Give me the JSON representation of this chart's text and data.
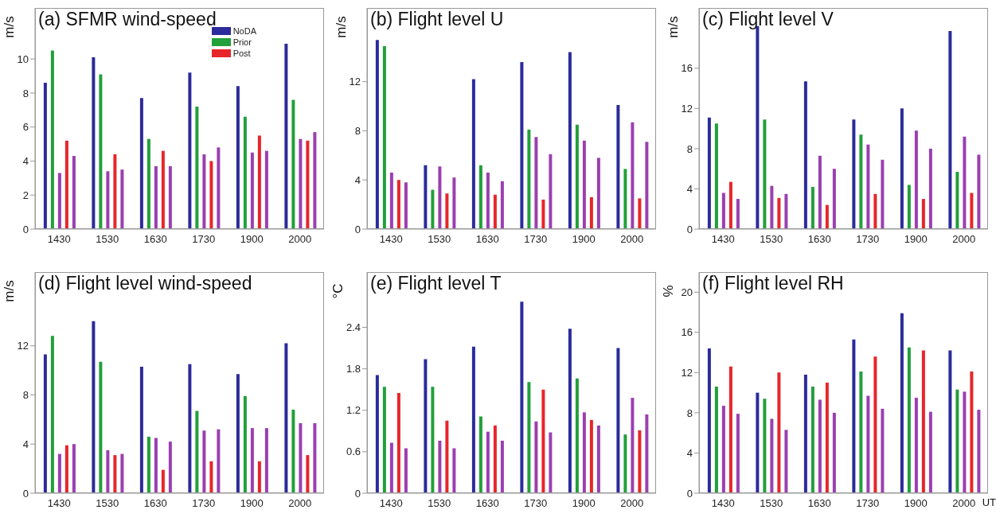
{
  "chart_data": [
    {
      "type": "bar",
      "title": "(a) SFMR wind-speed",
      "ylabel": "m/s",
      "categories": [
        "1430",
        "1530",
        "1630",
        "1730",
        "1900",
        "2000"
      ],
      "ylim": [
        0,
        13
      ],
      "yticks": [
        0,
        2,
        4,
        6,
        8,
        10
      ],
      "legend": "top right",
      "grid": false,
      "series": [
        {
          "name": "NoDA",
          "color": "#2b2b9c",
          "values": [
            8.6,
            10.1,
            7.7,
            9.2,
            8.4,
            10.9
          ]
        },
        {
          "name": "Prior",
          "color": "#22a03a",
          "values": [
            10.5,
            9.1,
            5.3,
            7.2,
            6.6,
            7.6
          ]
        },
        {
          "color": "#9b3fb0",
          "values": [
            3.3,
            3.4,
            3.7,
            4.4,
            4.5,
            5.3
          ]
        },
        {
          "name": "Post",
          "color": "#e8252a",
          "values": [
            5.2,
            4.4,
            4.6,
            4.0,
            5.5,
            5.2
          ]
        },
        {
          "color": "#9b3fb0",
          "values": [
            4.3,
            3.5,
            3.7,
            4.8,
            4.6,
            5.7
          ]
        }
      ]
    },
    {
      "type": "bar",
      "title": "(b) Flight level U",
      "ylabel": "m/s",
      "categories": [
        "1430",
        "1530",
        "1630",
        "1730",
        "1900",
        "2000"
      ],
      "ylim": [
        0,
        18
      ],
      "yticks": [
        0,
        4,
        8,
        12
      ],
      "legend": false,
      "grid": false,
      "series": [
        {
          "color": "#2b2b9c",
          "values": [
            15.4,
            5.2,
            12.2,
            13.6,
            14.4,
            10.1
          ]
        },
        {
          "color": "#22a03a",
          "values": [
            14.9,
            3.2,
            5.2,
            8.1,
            8.5,
            4.9
          ]
        },
        {
          "color": "#9b3fb0",
          "values": [
            4.6,
            5.1,
            4.6,
            7.5,
            7.2,
            8.7
          ]
        },
        {
          "color": "#e8252a",
          "values": [
            4.0,
            2.9,
            2.8,
            2.4,
            2.6,
            2.5
          ]
        },
        {
          "color": "#9b3fb0",
          "values": [
            3.8,
            4.2,
            3.9,
            6.1,
            5.8,
            7.1
          ]
        }
      ]
    },
    {
      "type": "bar",
      "title": "(c) Flight level V",
      "ylabel": "m/s",
      "categories": [
        "1430",
        "1530",
        "1630",
        "1730",
        "1900",
        "2000"
      ],
      "ylim": [
        0,
        22
      ],
      "yticks": [
        0,
        4,
        8,
        12,
        16
      ],
      "legend": false,
      "grid": false,
      "series": [
        {
          "color": "#2b2b9c",
          "values": [
            11.1,
            20.2,
            14.7,
            10.9,
            12.0,
            19.7
          ]
        },
        {
          "color": "#22a03a",
          "values": [
            10.5,
            10.9,
            4.2,
            9.4,
            4.4,
            5.7
          ]
        },
        {
          "color": "#9b3fb0",
          "values": [
            3.6,
            4.3,
            7.3,
            8.4,
            9.8,
            9.2
          ]
        },
        {
          "color": "#e8252a",
          "values": [
            4.7,
            3.1,
            2.4,
            3.5,
            3.0,
            3.6
          ]
        },
        {
          "color": "#9b3fb0",
          "values": [
            3.0,
            3.5,
            6.0,
            6.9,
            8.0,
            7.4
          ]
        }
      ]
    },
    {
      "type": "bar",
      "title": "(d) Flight level wind-speed",
      "ylabel": "m/s",
      "categories": [
        "1430",
        "1530",
        "1630",
        "1730",
        "1900",
        "2000"
      ],
      "ylim": [
        0,
        18
      ],
      "yticks": [
        0,
        4,
        8,
        12
      ],
      "legend": false,
      "grid": false,
      "series": [
        {
          "color": "#2b2b9c",
          "values": [
            11.3,
            14.0,
            10.3,
            10.5,
            9.7,
            12.2
          ]
        },
        {
          "color": "#22a03a",
          "values": [
            12.8,
            10.7,
            4.6,
            6.7,
            7.9,
            6.8
          ]
        },
        {
          "color": "#9b3fb0",
          "values": [
            3.2,
            3.5,
            4.5,
            5.1,
            5.3,
            5.7
          ]
        },
        {
          "color": "#e8252a",
          "values": [
            3.9,
            3.1,
            1.9,
            2.6,
            2.6,
            3.1
          ]
        },
        {
          "color": "#9b3fb0",
          "values": [
            4.0,
            3.2,
            4.2,
            5.2,
            5.3,
            5.7
          ]
        }
      ]
    },
    {
      "type": "bar",
      "title": "(e) Flight level T",
      "ylabel": "°C",
      "categories": [
        "1430",
        "1530",
        "1630",
        "1730",
        "1900",
        "2000"
      ],
      "ylim": [
        0,
        3.2
      ],
      "yticks": [
        0,
        0.6,
        1.2,
        1.8,
        2.4
      ],
      "legend": false,
      "grid": false,
      "series": [
        {
          "color": "#2b2b9c",
          "values": [
            1.71,
            1.94,
            2.12,
            2.77,
            2.38,
            2.1
          ]
        },
        {
          "color": "#22a03a",
          "values": [
            1.54,
            1.54,
            1.11,
            1.61,
            1.66,
            0.85
          ]
        },
        {
          "color": "#9b3fb0",
          "values": [
            0.73,
            0.76,
            0.89,
            1.04,
            1.17,
            1.38
          ]
        },
        {
          "color": "#e8252a",
          "values": [
            1.45,
            1.05,
            0.98,
            1.5,
            1.06,
            0.91
          ]
        },
        {
          "color": "#9b3fb0",
          "values": [
            0.65,
            0.65,
            0.76,
            0.88,
            0.98,
            1.14
          ]
        }
      ]
    },
    {
      "type": "bar",
      "title": "(f) Flight level RH",
      "ylabel": "%",
      "xlabel": "UT",
      "categories": [
        "1430",
        "1530",
        "1630",
        "1730",
        "1900",
        "2000"
      ],
      "ylim": [
        0,
        22
      ],
      "yticks": [
        0,
        4,
        8,
        12,
        16,
        20
      ],
      "legend": false,
      "grid": false,
      "series": [
        {
          "color": "#2b2b9c",
          "values": [
            14.4,
            10.0,
            11.8,
            15.3,
            17.9,
            14.2
          ]
        },
        {
          "color": "#22a03a",
          "values": [
            10.6,
            9.4,
            10.6,
            12.1,
            14.5,
            10.3
          ]
        },
        {
          "color": "#9b3fb0",
          "values": [
            8.7,
            7.4,
            9.3,
            9.7,
            9.5,
            10.1
          ]
        },
        {
          "color": "#e8252a",
          "values": [
            12.6,
            12.0,
            11.0,
            13.6,
            14.2,
            12.1
          ]
        },
        {
          "color": "#9b3fb0",
          "values": [
            7.9,
            6.3,
            8.0,
            8.4,
            8.1,
            8.3
          ]
        }
      ]
    }
  ]
}
